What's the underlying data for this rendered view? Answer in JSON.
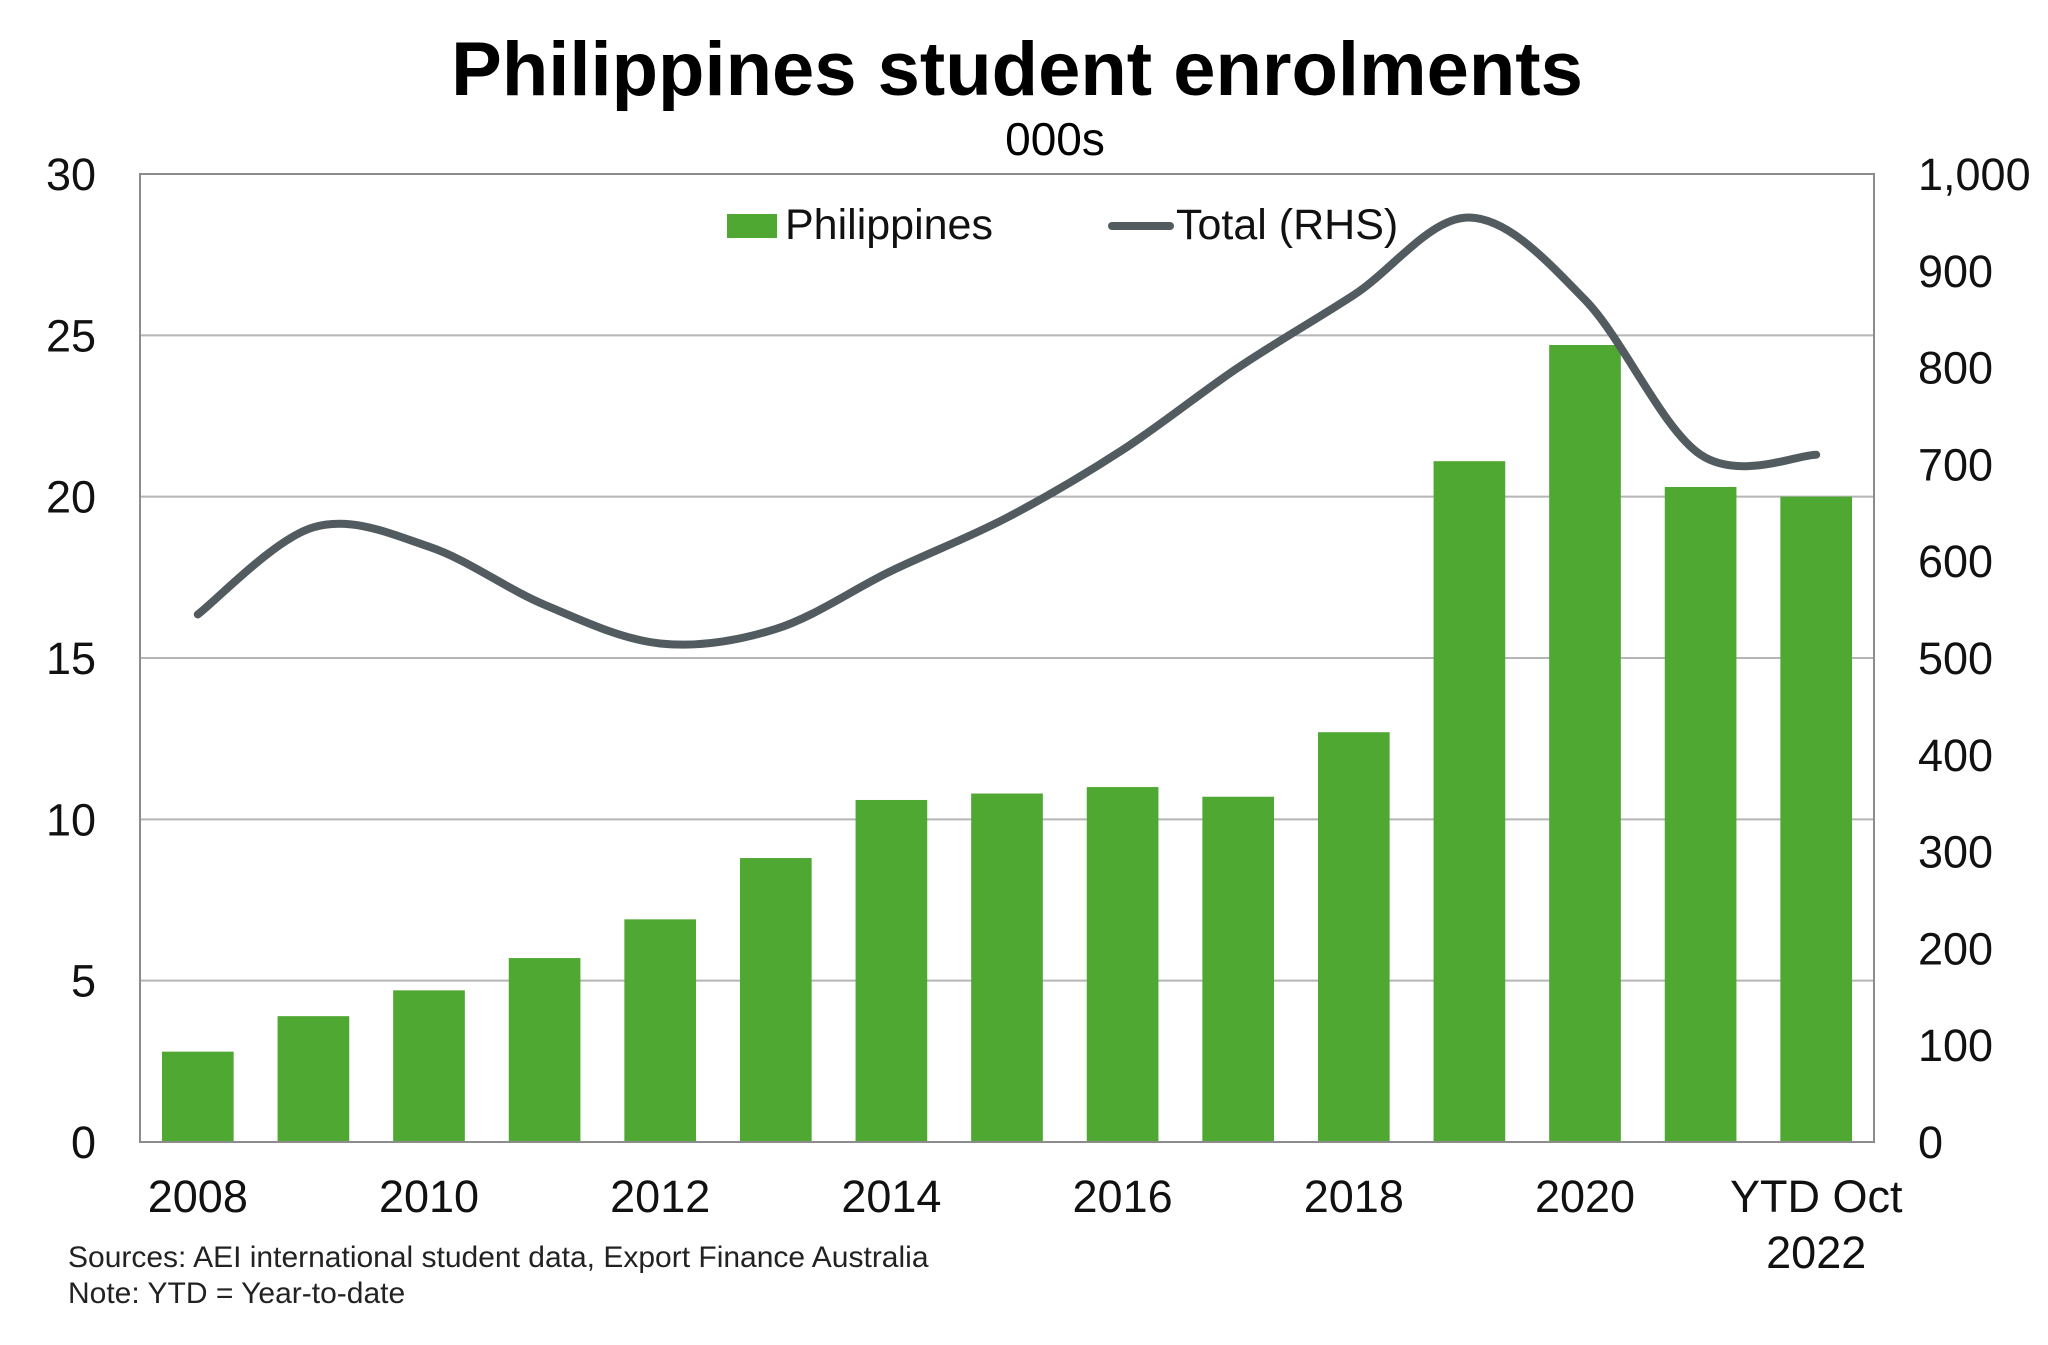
{
  "chart_data": {
    "type": "bar",
    "title": "Philippines student enrolments",
    "subtitle": "000s",
    "categories": [
      "2008",
      "2009",
      "2010",
      "2011",
      "2012",
      "2013",
      "2014",
      "2015",
      "2016",
      "2017",
      "2018",
      "2019",
      "2020",
      "2021",
      "YTD Oct 2022"
    ],
    "x_tick_labels": [
      "2008",
      "2010",
      "2012",
      "2014",
      "2016",
      "2018",
      "2020",
      "YTD Oct",
      "2022"
    ],
    "series": [
      {
        "name": "Philippines",
        "type": "bar",
        "axis": "left",
        "color": "#4fa832",
        "values": [
          2.8,
          3.9,
          4.7,
          5.7,
          6.9,
          8.8,
          10.6,
          10.8,
          11.0,
          10.7,
          12.7,
          21.1,
          24.7,
          20.3,
          20.0
        ]
      },
      {
        "name": "Total (RHS)",
        "type": "line",
        "axis": "right",
        "color": "#525c60",
        "values": [
          545,
          635,
          615,
          555,
          515,
          530,
          590,
          645,
          715,
          800,
          875,
          955,
          870,
          710,
          710
        ]
      }
    ],
    "y_left": {
      "ylim": [
        0,
        30
      ],
      "ticks": [
        "0",
        "5",
        "10",
        "15",
        "20",
        "25",
        "30"
      ]
    },
    "y_right": {
      "ylim": [
        0,
        1000
      ],
      "ticks": [
        "0",
        "100",
        "200",
        "300",
        "400",
        "500",
        "600",
        "700",
        "800",
        "900",
        "1,000"
      ]
    },
    "grid": true,
    "legend_position": "top-center"
  },
  "notes": {
    "sources": "Sources: AEI international student data, Export Finance Australia",
    "note": "Note: YTD = Year-to-date"
  }
}
